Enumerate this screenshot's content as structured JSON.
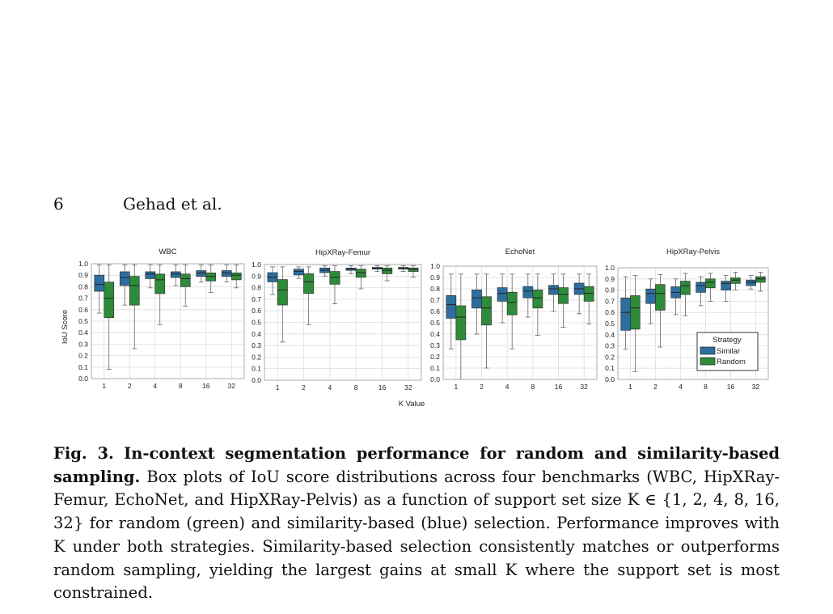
{
  "header": {
    "page_number": "6",
    "authors": "Gehad et al."
  },
  "figure": {
    "x_axis_label": "K Value",
    "y_axis_label": "IoU Score",
    "legend": {
      "title": "Strategy",
      "items": [
        "Similar",
        "Random"
      ]
    },
    "colors": {
      "Similar": "#2e6e9e",
      "Random": "#2e8b3a"
    }
  },
  "chart_data": [
    {
      "type": "box",
      "title": "WBC",
      "categories": [
        "1",
        "2",
        "4",
        "8",
        "16",
        "32"
      ],
      "ylim": [
        0,
        1
      ],
      "yticks": [
        "0.0",
        "0.1",
        "0.2",
        "0.3",
        "0.4",
        "0.5",
        "0.6",
        "0.7",
        "0.8",
        "0.9",
        "1.0"
      ],
      "grid": true,
      "series": [
        {
          "name": "Similar",
          "boxes": [
            [
              0.57,
              0.76,
              0.82,
              0.9,
              0.99
            ],
            [
              0.64,
              0.81,
              0.88,
              0.93,
              0.99
            ],
            [
              0.79,
              0.87,
              0.91,
              0.93,
              0.99
            ],
            [
              0.81,
              0.88,
              0.91,
              0.93,
              0.99
            ],
            [
              0.84,
              0.89,
              0.92,
              0.94,
              0.99
            ],
            [
              0.84,
              0.89,
              0.92,
              0.94,
              0.99
            ]
          ]
        },
        {
          "name": "Random",
          "boxes": [
            [
              0.08,
              0.53,
              0.7,
              0.84,
              0.99
            ],
            [
              0.26,
              0.64,
              0.81,
              0.89,
              0.99
            ],
            [
              0.47,
              0.74,
              0.86,
              0.91,
              0.99
            ],
            [
              0.63,
              0.8,
              0.87,
              0.91,
              0.99
            ],
            [
              0.75,
              0.85,
              0.89,
              0.92,
              0.99
            ],
            [
              0.79,
              0.86,
              0.9,
              0.92,
              0.99
            ]
          ]
        }
      ]
    },
    {
      "type": "box",
      "title": "HipXRay-Femur",
      "categories": [
        "1",
        "2",
        "4",
        "8",
        "16",
        "32"
      ],
      "ylim": [
        0,
        1
      ],
      "yticks": [
        "0.0",
        "0.1",
        "0.2",
        "0.3",
        "0.4",
        "0.5",
        "0.6",
        "0.7",
        "0.8",
        "0.9",
        "1.0"
      ],
      "grid": true,
      "series": [
        {
          "name": "Similar",
          "boxes": [
            [
              0.74,
              0.85,
              0.89,
              0.93,
              0.98
            ],
            [
              0.88,
              0.91,
              0.94,
              0.96,
              0.98
            ],
            [
              0.9,
              0.93,
              0.95,
              0.97,
              0.99
            ],
            [
              0.92,
              0.95,
              0.96,
              0.97,
              0.99
            ],
            [
              0.94,
              0.96,
              0.97,
              0.975,
              0.99
            ],
            [
              0.94,
              0.96,
              0.97,
              0.975,
              0.99
            ]
          ]
        },
        {
          "name": "Random",
          "boxes": [
            [
              0.33,
              0.65,
              0.78,
              0.87,
              0.98
            ],
            [
              0.48,
              0.75,
              0.85,
              0.92,
              0.98
            ],
            [
              0.66,
              0.83,
              0.89,
              0.94,
              0.99
            ],
            [
              0.79,
              0.89,
              0.93,
              0.96,
              0.99
            ],
            [
              0.86,
              0.92,
              0.95,
              0.97,
              0.99
            ],
            [
              0.89,
              0.94,
              0.96,
              0.97,
              0.99
            ]
          ]
        }
      ]
    },
    {
      "type": "box",
      "title": "EchoNet",
      "categories": [
        "1",
        "2",
        "4",
        "8",
        "16",
        "32"
      ],
      "ylim": [
        0,
        1
      ],
      "yticks": [
        "0.0",
        "0.1",
        "0.2",
        "0.3",
        "0.4",
        "0.5",
        "0.6",
        "0.7",
        "0.8",
        "0.9",
        "1.0"
      ],
      "grid": true,
      "series": [
        {
          "name": "Similar",
          "boxes": [
            [
              0.27,
              0.54,
              0.66,
              0.74,
              0.93
            ],
            [
              0.4,
              0.63,
              0.72,
              0.79,
              0.93
            ],
            [
              0.5,
              0.69,
              0.76,
              0.81,
              0.93
            ],
            [
              0.55,
              0.72,
              0.78,
              0.82,
              0.93
            ],
            [
              0.6,
              0.75,
              0.8,
              0.83,
              0.93
            ],
            [
              0.58,
              0.75,
              0.8,
              0.85,
              0.93
            ]
          ]
        },
        {
          "name": "Random",
          "boxes": [
            [
              0.0,
              0.35,
              0.55,
              0.65,
              0.93
            ],
            [
              0.1,
              0.48,
              0.63,
              0.73,
              0.93
            ],
            [
              0.27,
              0.57,
              0.68,
              0.77,
              0.93
            ],
            [
              0.39,
              0.63,
              0.72,
              0.79,
              0.93
            ],
            [
              0.46,
              0.67,
              0.75,
              0.81,
              0.93
            ],
            [
              0.49,
              0.69,
              0.76,
              0.82,
              0.93
            ]
          ]
        }
      ]
    },
    {
      "type": "box",
      "title": "HipXRay-Pelvis",
      "categories": [
        "1",
        "2",
        "4",
        "8",
        "16",
        "32"
      ],
      "ylim": [
        0,
        1
      ],
      "yticks": [
        "0.0",
        "0.1",
        "0.2",
        "0.3",
        "0.4",
        "0.5",
        "0.6",
        "0.7",
        "0.8",
        "0.9",
        "1.0"
      ],
      "grid": true,
      "legend_position": "lower right",
      "series": [
        {
          "name": "Similar",
          "boxes": [
            [
              0.27,
              0.44,
              0.6,
              0.73,
              0.92
            ],
            [
              0.5,
              0.68,
              0.77,
              0.81,
              0.9
            ],
            [
              0.58,
              0.73,
              0.78,
              0.83,
              0.9
            ],
            [
              0.66,
              0.78,
              0.84,
              0.87,
              0.92
            ],
            [
              0.7,
              0.8,
              0.86,
              0.88,
              0.93
            ],
            [
              0.81,
              0.84,
              0.87,
              0.89,
              0.93
            ]
          ]
        },
        {
          "name": "Random",
          "boxes": [
            [
              0.07,
              0.45,
              0.64,
              0.75,
              0.93
            ],
            [
              0.29,
              0.62,
              0.77,
              0.85,
              0.94
            ],
            [
              0.57,
              0.76,
              0.84,
              0.88,
              0.95
            ],
            [
              0.7,
              0.82,
              0.87,
              0.9,
              0.95
            ],
            [
              0.8,
              0.86,
              0.89,
              0.91,
              0.96
            ],
            [
              0.79,
              0.87,
              0.9,
              0.92,
              0.96
            ]
          ]
        }
      ]
    }
  ],
  "caption": {
    "label": "Fig. 3.",
    "title": "In-context segmentation performance for random and similarity-based sampling.",
    "body": "Box plots of IoU score distributions across four benchmarks (WBC, HipXRay-Femur, EchoNet, and HipXRay-Pelvis) as a function of support set size K ∈ {1, 2, 4, 8, 16, 32} for random (green) and similarity-based (blue) selection. Performance improves with K under both strategies. Similarity-based selection consistently matches or outperforms random sampling, yielding the largest gains at small K where the support set is most constrained."
  }
}
